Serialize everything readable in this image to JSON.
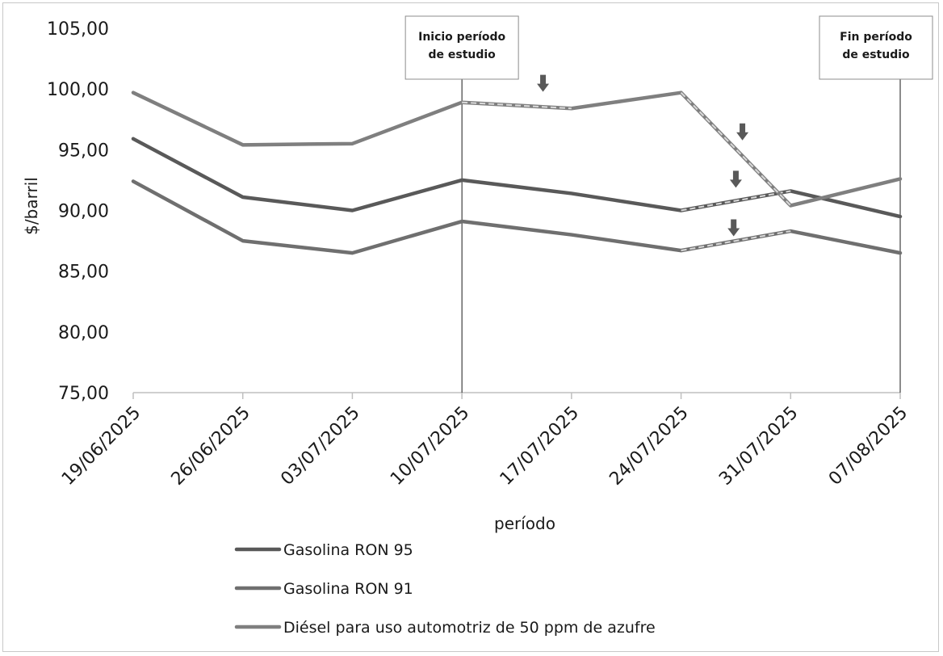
{
  "chart_data": {
    "type": "line",
    "title": "",
    "xlabel": "período",
    "ylabel": "$/barril",
    "ylim": [
      75,
      105
    ],
    "y_ticks": [
      "105,00",
      "100,00",
      "95,00",
      "90,00",
      "85,00",
      "80,00",
      "75,00"
    ],
    "y_tick_values": [
      105,
      100,
      95,
      90,
      85,
      80,
      75
    ],
    "categories": [
      "19/06/2025",
      "26/06/2025",
      "03/07/2025",
      "10/07/2025",
      "17/07/2025",
      "24/07/2025",
      "31/07/2025",
      "07/08/2025"
    ],
    "grid": false,
    "legend_position": "bottom",
    "series": [
      {
        "name": "Gasolina RON 95",
        "values": [
          95.9,
          91.1,
          90.0,
          92.5,
          91.4,
          90.0,
          91.6,
          89.5
        ],
        "color": "#595959",
        "highlight_segments": [
          [
            5,
            6
          ]
        ]
      },
      {
        "name": "Gasolina RON 91",
        "values": [
          92.4,
          87.5,
          86.5,
          89.1,
          88.0,
          86.7,
          88.3,
          86.5
        ],
        "color": "#6f6f6f",
        "highlight_segments": [
          [
            5,
            6
          ]
        ]
      },
      {
        "name": "Diésel para uso automotriz de 50 ppm de azufre",
        "values": [
          99.7,
          95.4,
          95.5,
          98.9,
          98.4,
          99.7,
          90.4,
          92.6
        ],
        "color": "#7f7f7f",
        "highlight_segments": [
          [
            3,
            4
          ],
          [
            5,
            6
          ]
        ]
      }
    ],
    "vertical_markers": [
      {
        "category_index": 3,
        "label_lines": [
          "Inicio período",
          "de estudio"
        ]
      },
      {
        "category_index": 7,
        "label_lines": [
          "Fin período",
          "de estudio"
        ]
      }
    ],
    "arrows": [
      {
        "x": 3.74,
        "y": 100.3
      },
      {
        "x": 5.56,
        "y": 96.3
      },
      {
        "x": 5.5,
        "y": 92.4
      },
      {
        "x": 5.48,
        "y": 88.4
      }
    ]
  }
}
